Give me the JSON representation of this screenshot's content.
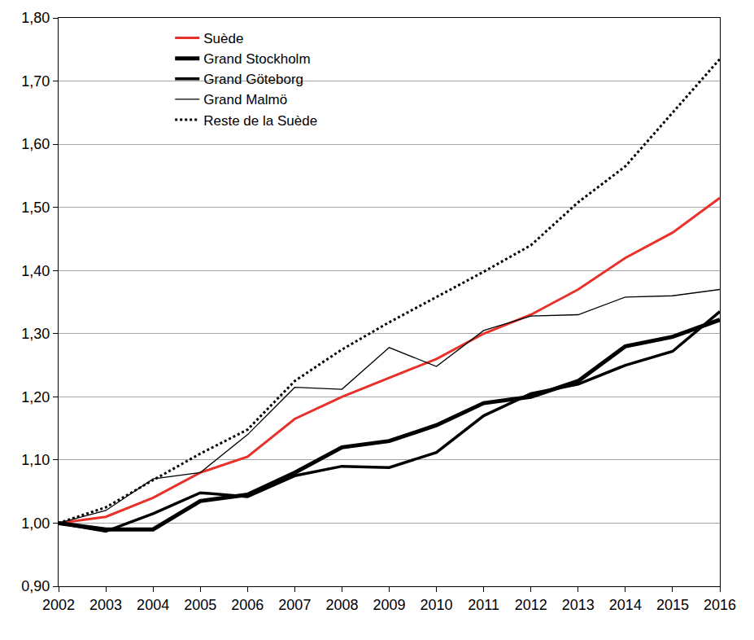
{
  "chart_data": {
    "type": "line",
    "x": [
      2002,
      2003,
      2004,
      2005,
      2006,
      2007,
      2008,
      2009,
      2010,
      2011,
      2012,
      2013,
      2014,
      2015,
      2016
    ],
    "xlim": [
      2002,
      2016
    ],
    "xticks": [
      2002,
      2003,
      2004,
      2005,
      2006,
      2007,
      2008,
      2009,
      2010,
      2011,
      2012,
      2013,
      2014,
      2015,
      2016
    ],
    "ylim": [
      0.9,
      1.8
    ],
    "yticks": [
      {
        "value": 0.9,
        "label": "0,90"
      },
      {
        "value": 1.0,
        "label": "1,00"
      },
      {
        "value": 1.1,
        "label": "1,10"
      },
      {
        "value": 1.2,
        "label": "1,20"
      },
      {
        "value": 1.3,
        "label": "1,30"
      },
      {
        "value": 1.4,
        "label": "1,40"
      },
      {
        "value": 1.5,
        "label": "1,50"
      },
      {
        "value": 1.6,
        "label": "1,60"
      },
      {
        "value": 1.7,
        "label": "1,70"
      },
      {
        "value": 1.8,
        "label": "1,80"
      }
    ],
    "grid": true,
    "legend": "top-left",
    "series": [
      {
        "name": "Suède",
        "color": "#e8312a",
        "line_style": "solid",
        "values": [
          1.0,
          1.01,
          1.04,
          1.08,
          1.105,
          1.165,
          1.2,
          1.23,
          1.26,
          1.3,
          1.33,
          1.37,
          1.42,
          1.46,
          1.515
        ]
      },
      {
        "name": "Grand Stockholm",
        "color": "#000000",
        "line_style": "solid",
        "values": [
          1.0,
          0.99,
          0.99,
          1.035,
          1.045,
          1.08,
          1.12,
          1.13,
          1.155,
          1.19,
          1.2,
          1.225,
          1.28,
          1.295,
          1.322
        ]
      },
      {
        "name": "Grand Göteborg",
        "color": "#000000",
        "line_style": "solid",
        "values": [
          1.0,
          0.987,
          1.015,
          1.048,
          1.042,
          1.075,
          1.09,
          1.088,
          1.112,
          1.17,
          1.205,
          1.22,
          1.25,
          1.272,
          1.335
        ]
      },
      {
        "name": "Grand Malmö",
        "color": "#000000",
        "line_style": "solid",
        "values": [
          1.0,
          1.02,
          1.07,
          1.08,
          1.14,
          1.215,
          1.212,
          1.278,
          1.248,
          1.305,
          1.328,
          1.33,
          1.358,
          1.36,
          1.37
        ]
      },
      {
        "name": "Reste de la Suède",
        "color": "#000000",
        "line_style": "dot",
        "values": [
          1.0,
          1.025,
          1.068,
          1.11,
          1.148,
          1.225,
          1.275,
          1.318,
          1.358,
          1.398,
          1.44,
          1.508,
          1.565,
          1.65,
          1.735
        ]
      }
    ]
  }
}
